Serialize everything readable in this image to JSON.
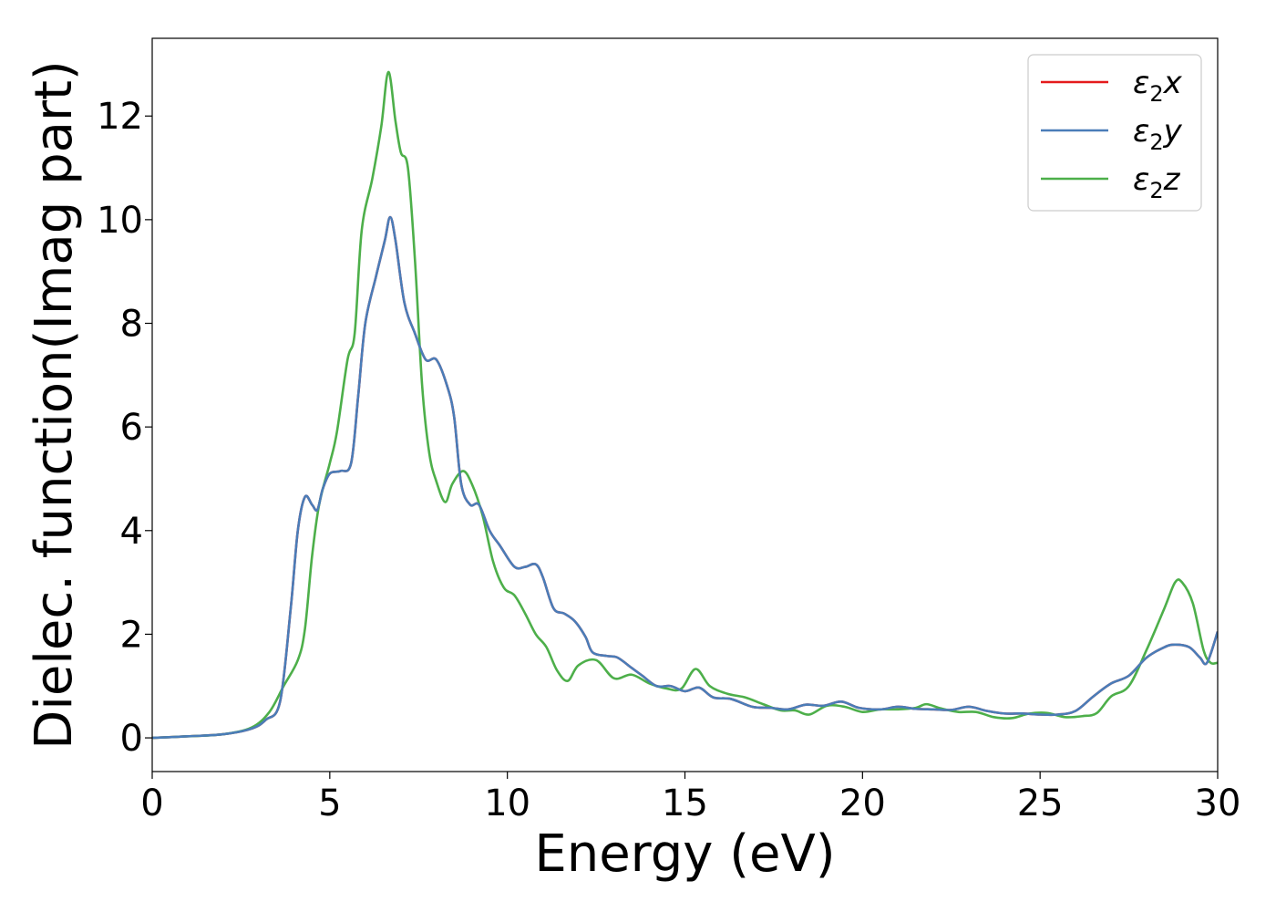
{
  "chart_data": {
    "type": "line",
    "xlabel": "Energy (eV)",
    "ylabel": "Dielec. function(Imag part)",
    "xlim": [
      0,
      30
    ],
    "ylim": [
      -0.65,
      13.5
    ],
    "xticks": [
      0,
      5,
      10,
      15,
      20,
      25,
      30
    ],
    "yticks": [
      0,
      2,
      4,
      6,
      8,
      10,
      12
    ],
    "grid": false,
    "legend_position": "top-right",
    "series": [
      {
        "name": "ε2x",
        "legend_base": "ε",
        "legend_sub": "2",
        "legend_tail": "x",
        "color": "#e41a1c",
        "points": [
          [
            0,
            0
          ],
          [
            1,
            0.03
          ],
          [
            2,
            0.07
          ],
          [
            2.8,
            0.18
          ],
          [
            3.2,
            0.35
          ],
          [
            3.6,
            0.7
          ],
          [
            3.9,
            2.5
          ],
          [
            4.1,
            4.0
          ],
          [
            4.3,
            4.65
          ],
          [
            4.5,
            4.5
          ],
          [
            4.65,
            4.4
          ],
          [
            4.8,
            4.8
          ],
          [
            5.0,
            5.1
          ],
          [
            5.3,
            5.15
          ],
          [
            5.6,
            5.3
          ],
          [
            5.8,
            6.6
          ],
          [
            6.0,
            8.0
          ],
          [
            6.3,
            8.9
          ],
          [
            6.55,
            9.6
          ],
          [
            6.7,
            10.05
          ],
          [
            6.85,
            9.6
          ],
          [
            7.1,
            8.4
          ],
          [
            7.4,
            7.8
          ],
          [
            7.7,
            7.3
          ],
          [
            8.0,
            7.3
          ],
          [
            8.3,
            6.8
          ],
          [
            8.5,
            6.2
          ],
          [
            8.7,
            4.9
          ],
          [
            8.95,
            4.5
          ],
          [
            9.2,
            4.5
          ],
          [
            9.5,
            4.0
          ],
          [
            9.8,
            3.7
          ],
          [
            10.2,
            3.3
          ],
          [
            10.5,
            3.3
          ],
          [
            10.8,
            3.35
          ],
          [
            11.0,
            3.1
          ],
          [
            11.3,
            2.5
          ],
          [
            11.6,
            2.4
          ],
          [
            11.9,
            2.25
          ],
          [
            12.2,
            1.95
          ],
          [
            12.4,
            1.65
          ],
          [
            12.8,
            1.58
          ],
          [
            13.1,
            1.55
          ],
          [
            13.5,
            1.35
          ],
          [
            13.8,
            1.2
          ],
          [
            14.2,
            1.0
          ],
          [
            14.6,
            1.0
          ],
          [
            15.0,
            0.9
          ],
          [
            15.4,
            0.97
          ],
          [
            15.8,
            0.78
          ],
          [
            16.3,
            0.75
          ],
          [
            16.9,
            0.6
          ],
          [
            17.4,
            0.58
          ],
          [
            17.9,
            0.55
          ],
          [
            18.4,
            0.64
          ],
          [
            18.9,
            0.62
          ],
          [
            19.4,
            0.7
          ],
          [
            19.9,
            0.58
          ],
          [
            20.5,
            0.55
          ],
          [
            21.0,
            0.6
          ],
          [
            21.5,
            0.56
          ],
          [
            22.0,
            0.55
          ],
          [
            22.5,
            0.54
          ],
          [
            23.0,
            0.6
          ],
          [
            23.5,
            0.52
          ],
          [
            24.0,
            0.47
          ],
          [
            24.5,
            0.47
          ],
          [
            25.0,
            0.45
          ],
          [
            25.5,
            0.45
          ],
          [
            26.0,
            0.52
          ],
          [
            26.5,
            0.8
          ],
          [
            27.0,
            1.05
          ],
          [
            27.5,
            1.2
          ],
          [
            28.0,
            1.55
          ],
          [
            28.5,
            1.75
          ],
          [
            28.8,
            1.8
          ],
          [
            29.2,
            1.75
          ],
          [
            29.5,
            1.55
          ],
          [
            29.7,
            1.45
          ],
          [
            30,
            2.05
          ]
        ]
      },
      {
        "name": "ε2y",
        "legend_base": "ε",
        "legend_sub": "2",
        "legend_tail": "y",
        "color": "#4a7db8",
        "points": [
          [
            0,
            0
          ],
          [
            1,
            0.03
          ],
          [
            2,
            0.07
          ],
          [
            2.8,
            0.18
          ],
          [
            3.2,
            0.35
          ],
          [
            3.6,
            0.7
          ],
          [
            3.9,
            2.5
          ],
          [
            4.1,
            4.0
          ],
          [
            4.3,
            4.65
          ],
          [
            4.5,
            4.5
          ],
          [
            4.65,
            4.4
          ],
          [
            4.8,
            4.8
          ],
          [
            5.0,
            5.1
          ],
          [
            5.3,
            5.15
          ],
          [
            5.6,
            5.3
          ],
          [
            5.8,
            6.6
          ],
          [
            6.0,
            8.0
          ],
          [
            6.3,
            8.9
          ],
          [
            6.55,
            9.6
          ],
          [
            6.7,
            10.05
          ],
          [
            6.85,
            9.6
          ],
          [
            7.1,
            8.4
          ],
          [
            7.4,
            7.8
          ],
          [
            7.7,
            7.3
          ],
          [
            8.0,
            7.3
          ],
          [
            8.3,
            6.8
          ],
          [
            8.5,
            6.2
          ],
          [
            8.7,
            4.9
          ],
          [
            8.95,
            4.5
          ],
          [
            9.2,
            4.5
          ],
          [
            9.5,
            4.0
          ],
          [
            9.8,
            3.7
          ],
          [
            10.2,
            3.3
          ],
          [
            10.5,
            3.3
          ],
          [
            10.8,
            3.35
          ],
          [
            11.0,
            3.1
          ],
          [
            11.3,
            2.5
          ],
          [
            11.6,
            2.4
          ],
          [
            11.9,
            2.25
          ],
          [
            12.2,
            1.95
          ],
          [
            12.4,
            1.65
          ],
          [
            12.8,
            1.58
          ],
          [
            13.1,
            1.55
          ],
          [
            13.5,
            1.35
          ],
          [
            13.8,
            1.2
          ],
          [
            14.2,
            1.0
          ],
          [
            14.6,
            1.0
          ],
          [
            15.0,
            0.9
          ],
          [
            15.4,
            0.97
          ],
          [
            15.8,
            0.78
          ],
          [
            16.3,
            0.75
          ],
          [
            16.9,
            0.6
          ],
          [
            17.4,
            0.58
          ],
          [
            17.9,
            0.55
          ],
          [
            18.4,
            0.64
          ],
          [
            18.9,
            0.62
          ],
          [
            19.4,
            0.7
          ],
          [
            19.9,
            0.58
          ],
          [
            20.5,
            0.55
          ],
          [
            21.0,
            0.6
          ],
          [
            21.5,
            0.56
          ],
          [
            22.0,
            0.55
          ],
          [
            22.5,
            0.54
          ],
          [
            23.0,
            0.6
          ],
          [
            23.5,
            0.52
          ],
          [
            24.0,
            0.47
          ],
          [
            24.5,
            0.47
          ],
          [
            25.0,
            0.45
          ],
          [
            25.5,
            0.45
          ],
          [
            26.0,
            0.52
          ],
          [
            26.5,
            0.8
          ],
          [
            27.0,
            1.05
          ],
          [
            27.5,
            1.2
          ],
          [
            28.0,
            1.55
          ],
          [
            28.5,
            1.75
          ],
          [
            28.8,
            1.8
          ],
          [
            29.2,
            1.75
          ],
          [
            29.5,
            1.55
          ],
          [
            29.7,
            1.45
          ],
          [
            30,
            2.05
          ]
        ]
      },
      {
        "name": "ε2z",
        "legend_base": "ε",
        "legend_sub": "2",
        "legend_tail": "z",
        "color": "#4daf4a",
        "points": [
          [
            0,
            0
          ],
          [
            1,
            0.03
          ],
          [
            2,
            0.07
          ],
          [
            2.8,
            0.2
          ],
          [
            3.3,
            0.5
          ],
          [
            3.7,
            1.0
          ],
          [
            4.1,
            1.5
          ],
          [
            4.3,
            2.1
          ],
          [
            4.5,
            3.5
          ],
          [
            4.7,
            4.5
          ],
          [
            5.0,
            5.3
          ],
          [
            5.2,
            5.9
          ],
          [
            5.5,
            7.3
          ],
          [
            5.7,
            7.8
          ],
          [
            5.9,
            9.8
          ],
          [
            6.2,
            10.8
          ],
          [
            6.45,
            11.8
          ],
          [
            6.65,
            12.85
          ],
          [
            6.85,
            11.9
          ],
          [
            7.0,
            11.3
          ],
          [
            7.2,
            11.0
          ],
          [
            7.4,
            9.2
          ],
          [
            7.6,
            6.8
          ],
          [
            7.8,
            5.5
          ],
          [
            8.0,
            4.95
          ],
          [
            8.25,
            4.55
          ],
          [
            8.45,
            4.9
          ],
          [
            8.75,
            5.15
          ],
          [
            9.0,
            4.9
          ],
          [
            9.3,
            4.3
          ],
          [
            9.6,
            3.4
          ],
          [
            9.9,
            2.9
          ],
          [
            10.2,
            2.75
          ],
          [
            10.5,
            2.4
          ],
          [
            10.8,
            2.0
          ],
          [
            11.1,
            1.75
          ],
          [
            11.4,
            1.3
          ],
          [
            11.7,
            1.1
          ],
          [
            12.0,
            1.4
          ],
          [
            12.5,
            1.5
          ],
          [
            13.0,
            1.15
          ],
          [
            13.5,
            1.22
          ],
          [
            14.0,
            1.05
          ],
          [
            14.5,
            0.95
          ],
          [
            14.9,
            0.95
          ],
          [
            15.3,
            1.33
          ],
          [
            15.7,
            1.0
          ],
          [
            16.2,
            0.85
          ],
          [
            16.7,
            0.78
          ],
          [
            17.2,
            0.65
          ],
          [
            17.7,
            0.53
          ],
          [
            18.1,
            0.53
          ],
          [
            18.5,
            0.45
          ],
          [
            19.0,
            0.62
          ],
          [
            19.5,
            0.6
          ],
          [
            20.0,
            0.5
          ],
          [
            20.5,
            0.55
          ],
          [
            21.0,
            0.55
          ],
          [
            21.5,
            0.58
          ],
          [
            21.8,
            0.65
          ],
          [
            22.2,
            0.57
          ],
          [
            22.7,
            0.5
          ],
          [
            23.2,
            0.5
          ],
          [
            23.7,
            0.4
          ],
          [
            24.2,
            0.38
          ],
          [
            24.7,
            0.47
          ],
          [
            25.2,
            0.48
          ],
          [
            25.7,
            0.4
          ],
          [
            26.2,
            0.42
          ],
          [
            26.6,
            0.48
          ],
          [
            27.0,
            0.8
          ],
          [
            27.5,
            1.0
          ],
          [
            28.0,
            1.7
          ],
          [
            28.5,
            2.5
          ],
          [
            28.8,
            3.0
          ],
          [
            29.0,
            3.0
          ],
          [
            29.3,
            2.6
          ],
          [
            29.6,
            1.7
          ],
          [
            29.8,
            1.45
          ],
          [
            30,
            1.45
          ]
        ]
      }
    ]
  }
}
